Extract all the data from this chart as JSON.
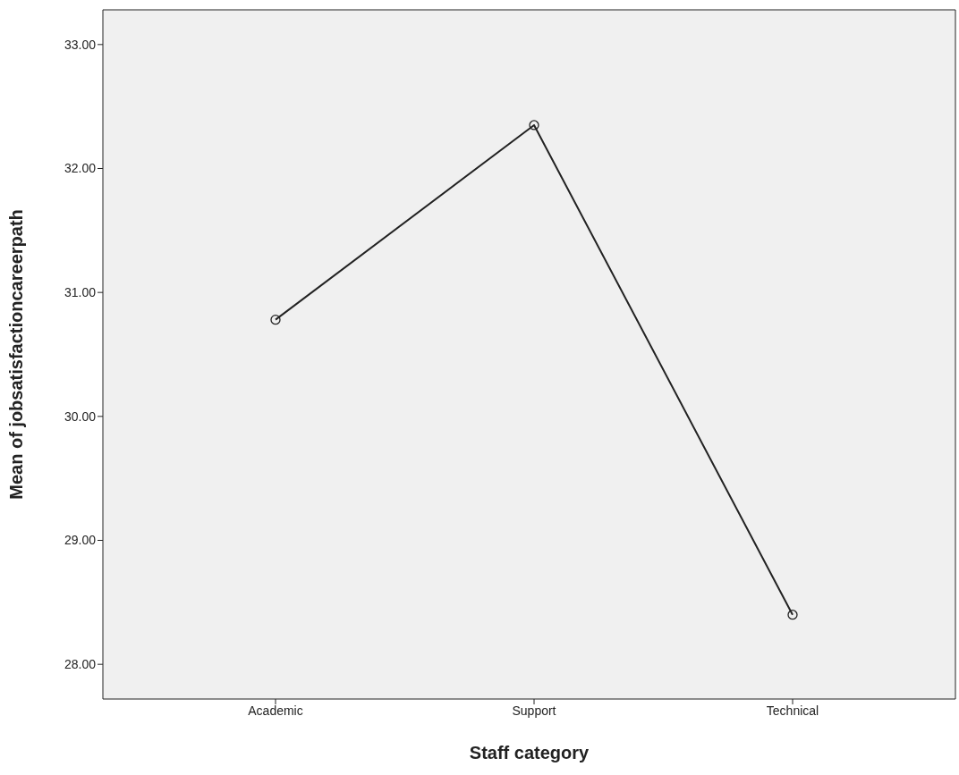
{
  "chart_data": {
    "type": "line",
    "xlabel": "Staff category",
    "ylabel": "Mean of jobsatisfactioncareerpath",
    "categories": [
      "Academic",
      "Support",
      "Technical"
    ],
    "series": [
      {
        "color": "#222222",
        "values": [
          30.78,
          32.35,
          28.4
        ]
      }
    ],
    "ylim": [
      27.72,
      33.28
    ],
    "yticks": [
      {
        "value": 28,
        "label": "28.00"
      },
      {
        "value": 29,
        "label": "29.00"
      },
      {
        "value": 30,
        "label": "30.00"
      },
      {
        "value": 31,
        "label": "31.00"
      },
      {
        "value": 32,
        "label": "32.00"
      },
      {
        "value": 33,
        "label": "33.00"
      }
    ],
    "marker": "circle",
    "legend": false
  }
}
